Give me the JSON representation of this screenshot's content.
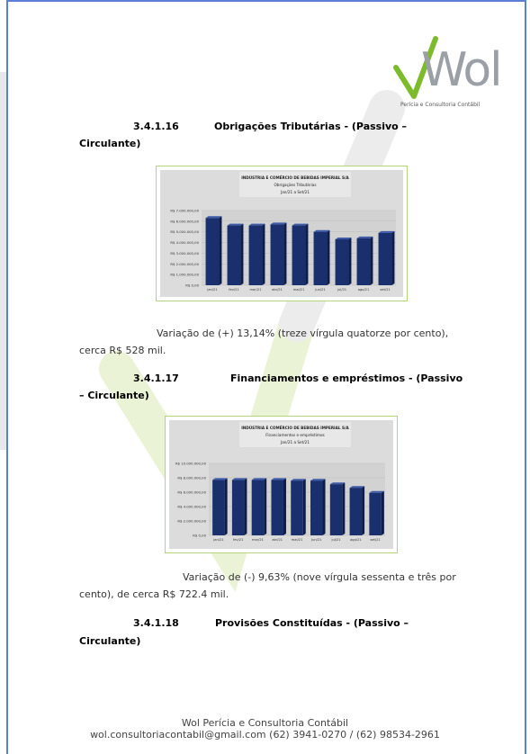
{
  "logo": {
    "name": "Wol",
    "tagline": "Perícia e Consultoria Contábil"
  },
  "sections": [
    {
      "number": "3.4.1.16",
      "title_line1": "Obrigações Tributárias - (Passivo –",
      "title_line2": "Circulante)",
      "note_line1": "Variação de (+) 13,14% (treze vírgula quatorze por cento),",
      "note_line2": "cerca R$ 528 mil."
    },
    {
      "number": "3.4.1.17",
      "title_line1": "Financiamentos e empréstimos - (Passivo",
      "title_line2": "– Circulante)",
      "note_line1": "Variação de (-) 9,63% (nove vírgula sessenta e três por",
      "note_line2": "cento), de cerca R$ 722.4 mil."
    },
    {
      "number": "3.4.1.18",
      "title_line1": "Provisões Constituídas - (Passivo –",
      "title_line2": "Circulante)"
    }
  ],
  "chart_data": [
    {
      "type": "bar",
      "title": "INDÚSTRIA E COMÉRCIO DE BEBIDAS IMPERIAL S/A",
      "subtitle": "Obrigações Tributárias",
      "period": "Jan/21 a Set/21",
      "categories": [
        "jan/21",
        "fev/21",
        "mar/21",
        "abr/21",
        "mai/21",
        "jun/21",
        "jul/21",
        "ago/21",
        "set/21"
      ],
      "values": [
        6300000,
        5600000,
        5600000,
        5700000,
        5600000,
        5000000,
        4300000,
        4400000,
        4900000
      ],
      "yticks": [
        "R$ 7.000.000,00",
        "R$ 6.000.000,00",
        "R$ 5.000.000,00",
        "R$ 4.000.000,00",
        "R$ 3.000.000,00",
        "R$ 2.000.000,00",
        "R$ 1.000.000,00",
        "R$ 0,00"
      ],
      "ylim": [
        0,
        7000000
      ],
      "bar_color": "#1a2f6e"
    },
    {
      "type": "bar",
      "title": "INDÚSTRIA E COMÉRCIO DE BEBIDAS IMPERIAL S/A",
      "subtitle": "Financiamentos e empréstimos",
      "period": "Jan/21 a Set/21",
      "categories": [
        "jan/21",
        "fev/21",
        "mar/21",
        "abr/21",
        "mai/21",
        "jun/21",
        "jul/21",
        "ago/21",
        "set/21"
      ],
      "values": [
        7700000,
        7700000,
        7700000,
        7700000,
        7600000,
        7600000,
        7100000,
        6600000,
        5900000
      ],
      "yticks": [
        "R$ 10.000.000,00",
        "R$ 8.000.000,00",
        "R$ 6.000.000,00",
        "R$ 4.000.000,00",
        "R$ 2.000.000,00",
        "R$ 0,00"
      ],
      "ylim": [
        0,
        10000000
      ],
      "bar_color": "#1a2f6e"
    }
  ],
  "footer": {
    "line1": "Wol Perícia e Consultoria Contábil",
    "line2": "wol.consultoriacontabil@gmail.com (62) 3941-0270 / (62) 98534-2961"
  }
}
